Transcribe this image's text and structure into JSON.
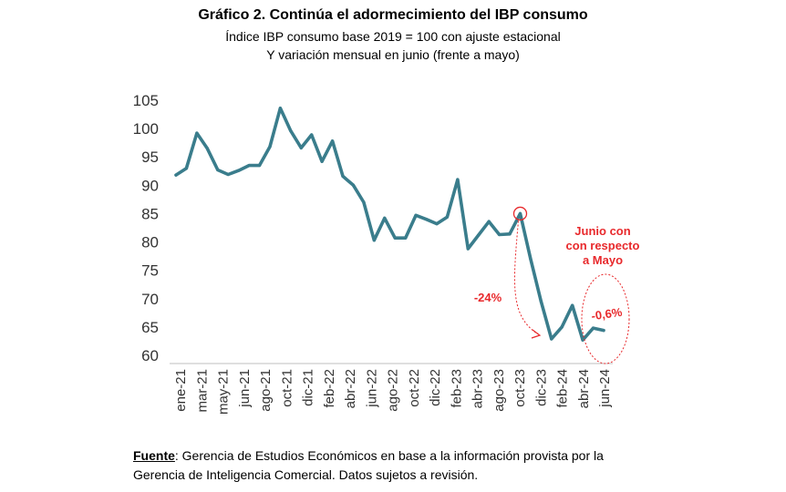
{
  "chart_data": {
    "type": "line",
    "title": "Gráfico 2. Continúa el adormecimiento del IBP consumo",
    "subtitle_lines": [
      "Índice IBP consumo base 2019 = 100 con ajuste estacional",
      "Y variación mensual en junio (frente a mayo)"
    ],
    "ylim": [
      60,
      105
    ],
    "yticks": [
      60,
      65,
      70,
      75,
      80,
      85,
      90,
      95,
      100,
      105
    ],
    "x_tick_labels": [
      "ene-21",
      "mar-21",
      "may-21",
      "jun-21",
      "ago-21",
      "oct-21",
      "dic-21",
      "feb-22",
      "abr-22",
      "jun-22",
      "ago-22",
      "oct-22",
      "dic-22",
      "feb-23",
      "abr-23",
      "ago-23",
      "oct-23",
      "dic-23",
      "feb-24",
      "abr-24",
      "jun-24"
    ],
    "x": [
      "ene-21",
      "feb-21",
      "mar-21",
      "abr-21",
      "may-21",
      "jun-21",
      "jul-21",
      "ago-21",
      "sep-21",
      "oct-21",
      "nov-21",
      "dic-21",
      "ene-22",
      "feb-22",
      "mar-22",
      "abr-22",
      "may-22",
      "jun-22",
      "jul-22",
      "ago-22",
      "sep-22",
      "oct-22",
      "nov-22",
      "dic-22",
      "ene-23",
      "feb-23",
      "mar-23",
      "abr-23",
      "may-23",
      "jun-23",
      "jul-23",
      "ago-23",
      "sep-23",
      "oct-23",
      "nov-23",
      "dic-23",
      "ene-24",
      "feb-24",
      "mar-24",
      "abr-24",
      "may-24",
      "jun-24"
    ],
    "series": [
      {
        "color": "#3a7d8c",
        "values": [
          91.8,
          93.0,
          99.2,
          96.5,
          92.7,
          91.9,
          92.6,
          93.5,
          93.5,
          96.8,
          103.6,
          99.6,
          96.6,
          98.9,
          94.2,
          97.8,
          91.6,
          90.0,
          87.0,
          80.3,
          84.2,
          80.7,
          80.7,
          84.7,
          84.0,
          83.2,
          84.4,
          91.0,
          78.8,
          81.2,
          83.6,
          81.3,
          81.4,
          85.0,
          77.0,
          69.5,
          62.9,
          65.0,
          68.8,
          62.7,
          64.8,
          64.4
        ]
      }
    ],
    "annotations": {
      "drop_label": "-24%",
      "month_label": "-0,6%",
      "month_note_lines": [
        "Junio con",
        "con respecto",
        "a Mayo"
      ],
      "highlight_color": "#e8292c"
    }
  },
  "source": {
    "label": "Fuente",
    "text_line1": ": Gerencia de Estudios Económicos en base a la información provista por la",
    "text_line2": "Gerencia de Inteligencia Comercial. Datos sujetos a revisión."
  }
}
